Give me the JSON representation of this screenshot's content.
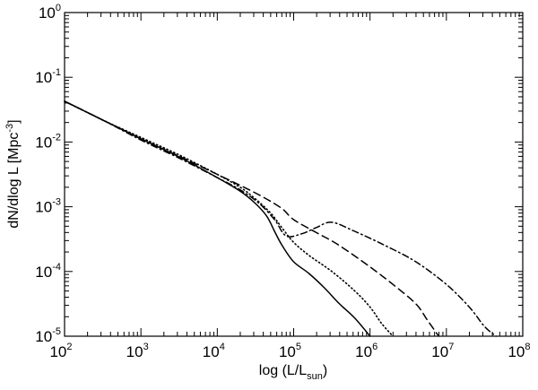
{
  "chart_data": {
    "type": "line",
    "title": "",
    "xlabel": "log (L/L_sun)",
    "xlabel_main": "log (L/L",
    "xlabel_sub": "sun",
    "xlabel_end": ")",
    "ylabel": "dN/dlog L [Mpc^-3]",
    "ylabel_main": "dN/dlog L [Mpc",
    "ylabel_sup": "-3",
    "ylabel_end": "]",
    "xscale": "log",
    "yscale": "log",
    "xlim": [
      100,
      100000000
    ],
    "ylim": [
      1e-05,
      1
    ],
    "grid": false,
    "legend": null,
    "x_ticks": [
      {
        "base": "10",
        "exp": "2",
        "value": 100
      },
      {
        "base": "10",
        "exp": "3",
        "value": 1000
      },
      {
        "base": "10",
        "exp": "4",
        "value": 10000
      },
      {
        "base": "10",
        "exp": "5",
        "value": 100000
      },
      {
        "base": "10",
        "exp": "6",
        "value": 1000000
      },
      {
        "base": "10",
        "exp": "7",
        "value": 10000000
      },
      {
        "base": "10",
        "exp": "8",
        "value": 100000000
      }
    ],
    "y_ticks": [
      {
        "base": "10",
        "exp": "0",
        "value": 1
      },
      {
        "base": "10",
        "exp": "-1",
        "value": 0.1
      },
      {
        "base": "10",
        "exp": "-2",
        "value": 0.01
      },
      {
        "base": "10",
        "exp": "-3",
        "value": 0.001
      },
      {
        "base": "10",
        "exp": "-4",
        "value": 0.0001
      },
      {
        "base": "10",
        "exp": "-5",
        "value": 1e-05
      }
    ],
    "series": [
      {
        "name": "solid",
        "style": "solid",
        "log_x": [
          2.0,
          2.5,
          3.0,
          3.5,
          4.0,
          4.3,
          4.5,
          4.65,
          4.75,
          4.85,
          5.0,
          5.2,
          5.4,
          5.6,
          5.8,
          6.0
        ],
        "log_y": [
          -1.37,
          -1.66,
          -1.95,
          -2.23,
          -2.55,
          -2.76,
          -2.95,
          -3.15,
          -3.38,
          -3.6,
          -3.85,
          -4.03,
          -4.25,
          -4.5,
          -4.72,
          -5.0
        ]
      },
      {
        "name": "dotted",
        "style": "dotted",
        "log_x": [
          2.0,
          2.5,
          3.0,
          3.5,
          4.0,
          4.3,
          4.5,
          4.7,
          4.85,
          5.0,
          5.2,
          5.5,
          5.8,
          6.0,
          6.15,
          6.3
        ],
        "log_y": [
          -1.37,
          -1.66,
          -1.93,
          -2.2,
          -2.5,
          -2.7,
          -2.88,
          -3.1,
          -3.33,
          -3.55,
          -3.75,
          -4.0,
          -4.3,
          -4.55,
          -4.8,
          -5.0
        ]
      },
      {
        "name": "dashed",
        "style": "dashed",
        "log_x": [
          2.0,
          2.5,
          3.0,
          3.5,
          4.0,
          4.3,
          4.6,
          4.85,
          5.0,
          5.3,
          5.6,
          6.0,
          6.3,
          6.6,
          6.75,
          6.9
        ],
        "log_y": [
          -1.37,
          -1.66,
          -1.95,
          -2.22,
          -2.5,
          -2.67,
          -2.85,
          -3.03,
          -3.2,
          -3.4,
          -3.6,
          -3.93,
          -4.2,
          -4.5,
          -4.75,
          -5.0
        ]
      },
      {
        "name": "dash-dot",
        "style": "dashdot",
        "log_x": [
          2.0,
          2.5,
          3.0,
          3.5,
          4.0,
          4.3,
          4.55,
          4.75,
          4.9,
          5.1,
          5.3,
          5.5,
          5.8,
          6.2,
          6.6,
          7.0,
          7.3,
          7.5,
          7.65
        ],
        "log_y": [
          -1.37,
          -1.66,
          -1.97,
          -2.25,
          -2.55,
          -2.74,
          -2.95,
          -3.2,
          -3.45,
          -3.42,
          -3.32,
          -3.24,
          -3.38,
          -3.6,
          -3.85,
          -4.2,
          -4.55,
          -4.85,
          -5.0
        ]
      }
    ]
  }
}
